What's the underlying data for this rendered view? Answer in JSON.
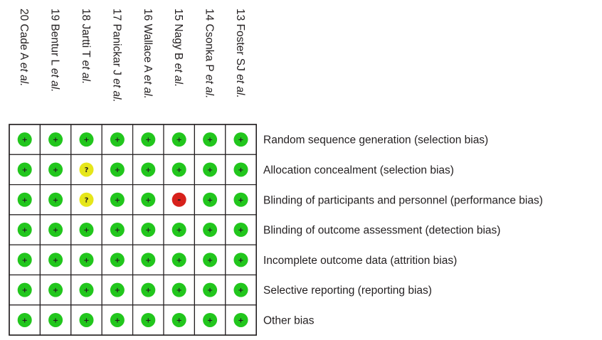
{
  "colors": {
    "low": "#22c61d",
    "unclear": "#e6e61a",
    "high": "#d7211c",
    "border": "#231f20"
  },
  "symbols": {
    "low": "+",
    "unclear": "?",
    "high": "-"
  },
  "studies": [
    {
      "name": "20 Cade A",
      "etal": "et al."
    },
    {
      "name": "19 Bentur L",
      "etal": "et al."
    },
    {
      "name": "18 Jartti T",
      "etal": "et al."
    },
    {
      "name": "17 Panickar J",
      "etal": "et al."
    },
    {
      "name": "16 Wallace A",
      "etal": "et al."
    },
    {
      "name": "15 Nagy B",
      "etal": "et al."
    },
    {
      "name": "14 Csonka P",
      "etal": "et al."
    },
    {
      "name": "13 Foster SJ",
      "etal": "et al."
    }
  ],
  "domains": [
    {
      "label": "Random sequence generation (selection bias)",
      "judgements": [
        "low",
        "low",
        "low",
        "low",
        "low",
        "low",
        "low",
        "low"
      ]
    },
    {
      "label": "Allocation concealment (selection bias)",
      "judgements": [
        "low",
        "low",
        "unclear",
        "low",
        "low",
        "low",
        "low",
        "low"
      ]
    },
    {
      "label": "Blinding of participants and personnel (performance bias)",
      "judgements": [
        "low",
        "low",
        "unclear",
        "low",
        "low",
        "high",
        "low",
        "low"
      ]
    },
    {
      "label": "Blinding of outcome assessment (detection bias)",
      "judgements": [
        "low",
        "low",
        "low",
        "low",
        "low",
        "low",
        "low",
        "low"
      ]
    },
    {
      "label": "Incomplete outcome data (attrition bias)",
      "judgements": [
        "low",
        "low",
        "low",
        "low",
        "low",
        "low",
        "low",
        "low"
      ]
    },
    {
      "label": "Selective reporting (reporting bias)",
      "judgements": [
        "low",
        "low",
        "low",
        "low",
        "low",
        "low",
        "low",
        "low"
      ]
    },
    {
      "label": "Other bias",
      "judgements": [
        "low",
        "low",
        "low",
        "low",
        "low",
        "low",
        "low",
        "low"
      ]
    }
  ]
}
